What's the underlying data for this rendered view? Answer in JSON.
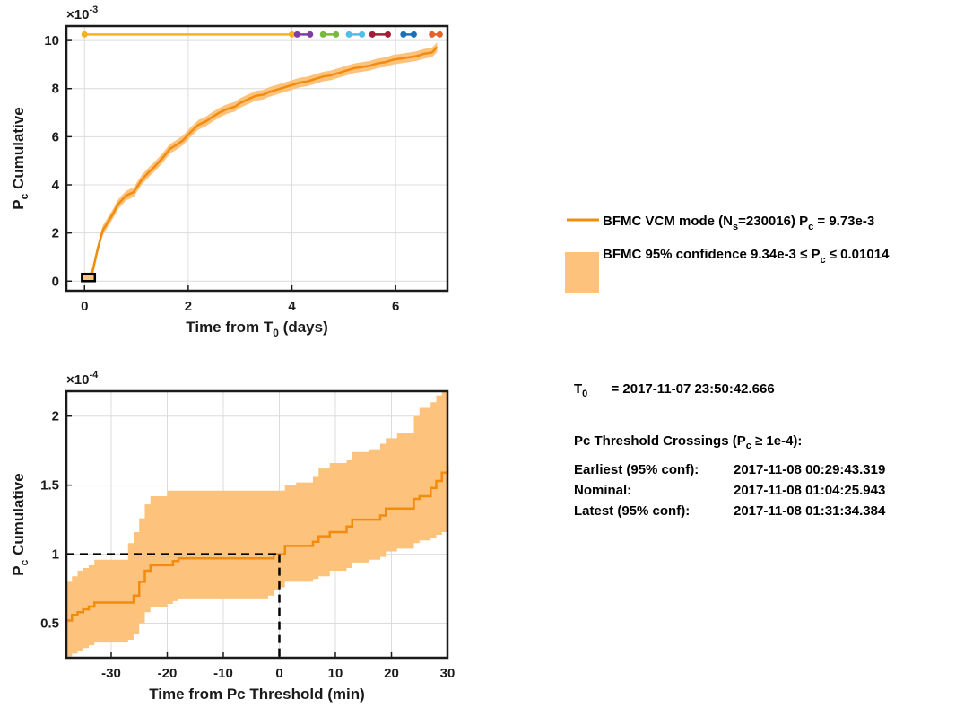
{
  "colors": {
    "curve": "#f28c0f",
    "band": "#fdc27c",
    "axis": "#1a1a1a",
    "grid": "#dcdcdc",
    "threshold_line": "#000000",
    "marker_purple": "#7e3da0",
    "marker_green": "#78b83c",
    "marker_cyan": "#4fbfe8",
    "marker_darkred": "#a31e36",
    "marker_blue": "#1b70b6",
    "marker_orange": "#e4622a"
  },
  "chart_data": [
    {
      "type": "line",
      "xlabel_parts": [
        "Time from T",
        "0",
        " (days)"
      ],
      "ylabel_parts": [
        "P",
        "c",
        " Cumulative"
      ],
      "exponent": "×10-3",
      "xlim": [
        -0.35,
        7.0
      ],
      "ylim": [
        -0.4,
        10.6
      ],
      "xticks": [
        0,
        2,
        4,
        6
      ],
      "yticks": [
        0,
        2,
        4,
        6,
        8,
        10
      ],
      "grid": true,
      "series": [
        {
          "name": "BFMC VCM mode",
          "x": [
            0.0,
            0.1,
            0.15,
            0.25,
            0.35,
            0.45,
            0.55,
            0.65,
            0.8,
            0.95,
            1.1,
            1.25,
            1.35,
            1.5,
            1.65,
            1.8,
            1.9,
            2.05,
            2.2,
            2.35,
            2.45,
            2.6,
            2.75,
            2.9,
            3.0,
            3.15,
            3.3,
            3.45,
            3.55,
            3.7,
            3.85,
            4.0,
            4.15,
            4.3,
            4.45,
            4.6,
            4.75,
            4.9,
            5.05,
            5.2,
            5.35,
            5.5,
            5.65,
            5.8,
            5.95,
            6.1,
            6.25,
            6.4,
            6.55,
            6.7,
            6.8
          ],
          "y": [
            0.15,
            0.15,
            0.35,
            1.3,
            2.1,
            2.45,
            2.8,
            3.2,
            3.55,
            3.7,
            4.2,
            4.55,
            4.75,
            5.1,
            5.5,
            5.7,
            5.85,
            6.2,
            6.5,
            6.65,
            6.8,
            7.0,
            7.15,
            7.25,
            7.4,
            7.55,
            7.7,
            7.75,
            7.85,
            7.95,
            8.05,
            8.15,
            8.25,
            8.3,
            8.4,
            8.5,
            8.55,
            8.65,
            8.75,
            8.85,
            8.9,
            8.95,
            9.05,
            9.1,
            9.2,
            9.25,
            9.3,
            9.35,
            9.45,
            9.5,
            9.73
          ]
        }
      ],
      "band": {
        "name": "BFMC 95% confidence",
        "half_width": 0.2
      },
      "reference_markers": [
        {
          "x0": 0.0,
          "x1": 4.0,
          "y": 10.25,
          "color": "#f5b21e"
        },
        {
          "x0": 4.1,
          "x1": 4.35,
          "y": 10.25,
          "color": "#7e3da0"
        },
        {
          "x0": 4.6,
          "x1": 4.85,
          "y": 10.25,
          "color": "#78b83c"
        },
        {
          "x0": 5.1,
          "x1": 5.35,
          "y": 10.25,
          "color": "#4fbfe8"
        },
        {
          "x0": 5.55,
          "x1": 5.85,
          "y": 10.25,
          "color": "#a31e36"
        },
        {
          "x0": 6.15,
          "x1": 6.35,
          "y": 10.25,
          "color": "#1b70b6"
        },
        {
          "x0": 6.7,
          "x1": 6.85,
          "y": 10.25,
          "color": "#e4622a"
        }
      ],
      "zoom_box": {
        "x0": -0.05,
        "x1": 0.2,
        "y0": 0.0,
        "y1": 0.3
      }
    },
    {
      "type": "line",
      "xlabel": "Time from Pc Threshold (min)",
      "ylabel_parts": [
        "P",
        "c",
        " Cumulative"
      ],
      "exponent": "×10-4",
      "xlim": [
        -38,
        30
      ],
      "ylim": [
        0.25,
        2.18
      ],
      "xticks": [
        -30,
        -20,
        -10,
        0,
        10,
        20,
        30
      ],
      "yticks": [
        0.5,
        1,
        1.5,
        2
      ],
      "ytick_labels": [
        "0.5",
        "1",
        "1.5",
        "2"
      ],
      "grid": true,
      "series": [
        {
          "name": "BFMC VCM mode",
          "x": [
            -38,
            -37,
            -36,
            -35,
            -34,
            -33,
            -27,
            -26,
            -25,
            -24,
            -23,
            -20,
            -19,
            -18,
            -2,
            -1,
            0,
            1,
            3,
            6,
            7,
            9,
            12,
            13,
            16,
            18,
            19,
            21,
            24,
            25,
            27,
            28,
            29,
            30
          ],
          "y": [
            0.52,
            0.56,
            0.58,
            0.6,
            0.62,
            0.65,
            0.65,
            0.7,
            0.8,
            0.88,
            0.92,
            0.92,
            0.95,
            0.97,
            0.97,
            1.0,
            1.0,
            1.06,
            1.06,
            1.09,
            1.13,
            1.16,
            1.2,
            1.25,
            1.25,
            1.28,
            1.33,
            1.33,
            1.4,
            1.42,
            1.48,
            1.53,
            1.59,
            1.64
          ]
        }
      ],
      "band_lower": [
        0.26,
        0.28,
        0.3,
        0.32,
        0.34,
        0.36,
        0.38,
        0.42,
        0.5,
        0.58,
        0.62,
        0.64,
        0.66,
        0.68,
        0.7,
        0.74,
        0.76,
        0.8,
        0.8,
        0.82,
        0.84,
        0.88,
        0.9,
        0.94,
        0.96,
        0.98,
        1.02,
        1.04,
        1.08,
        1.1,
        1.12,
        1.14,
        1.16,
        1.18
      ],
      "band_upper": [
        0.8,
        0.84,
        0.88,
        0.9,
        0.92,
        0.96,
        1.08,
        1.16,
        1.26,
        1.36,
        1.42,
        1.46,
        1.46,
        1.46,
        1.46,
        1.46,
        1.46,
        1.5,
        1.52,
        1.56,
        1.62,
        1.66,
        1.68,
        1.74,
        1.76,
        1.8,
        1.84,
        1.88,
        2.0,
        2.06,
        2.1,
        2.15,
        2.18,
        2.18
      ],
      "threshold": {
        "x": 0,
        "y": 1.0
      }
    }
  ],
  "legend": {
    "line": {
      "label_a": "BFMC VCM mode (N",
      "sub_a": "s",
      "label_b": "=230016) P",
      "sub_b": "c",
      "label_c": " = 9.73e-3"
    },
    "band": {
      "label_a": "BFMC 95% confidence 9.34e-3 ≤ P",
      "sub_a": "c",
      "label_b": " ≤ 0.01014"
    }
  },
  "info": {
    "t0_label": "T",
    "t0_sub": "0",
    "t0_value": "= 2017-11-07 23:50:42.666",
    "crossings_title_a": "Pc Threshold Crossings (P",
    "crossings_title_sub": "c",
    "crossings_title_b": " ≥ 1e-4):",
    "rows": [
      {
        "key": "Earliest (95% conf):",
        "value": "2017-11-08 00:29:43.319"
      },
      {
        "key": "Nominal:",
        "value": "2017-11-08 01:04:25.943"
      },
      {
        "key": "Latest (95% conf):",
        "value": "2017-11-08 01:31:34.384"
      }
    ]
  }
}
